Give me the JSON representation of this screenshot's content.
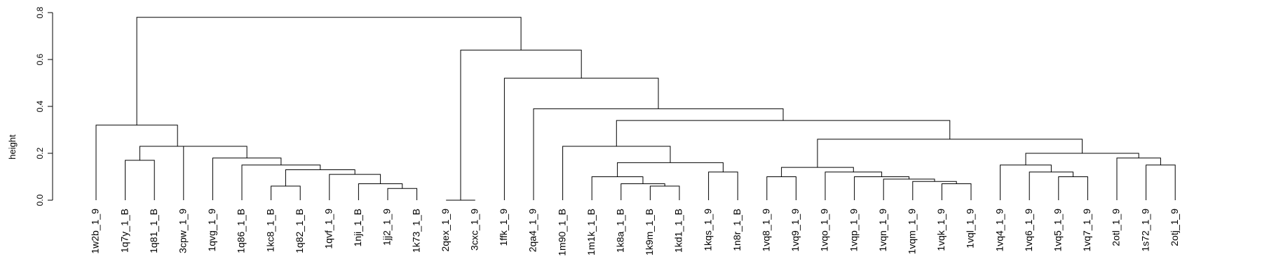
{
  "chart_data": {
    "type": "dendrogram",
    "title": "",
    "xlabel": "",
    "ylabel": "height",
    "ylim": [
      0,
      0.8
    ],
    "yticks": [
      "0.0",
      "0.2",
      "0.4",
      "0.6",
      "0.8"
    ],
    "yticks_values": [
      0,
      0.2,
      0.4,
      0.6,
      0.8
    ],
    "leaves": [
      "1w2b_1_9",
      "1q7y_1_B",
      "1q81_1_B",
      "3cpw_1_9",
      "1qvg_1_9",
      "1q86_1_B",
      "1kc8_1_B",
      "1q82_1_B",
      "1qvf_1_9",
      "1nji_1_B",
      "1jj2_1_9",
      "1k73_1_B",
      "2qex_1_9",
      "3cxc_1_9",
      "1ffk_1_9",
      "2qa4_1_9",
      "1m90_1_B",
      "1m1k_1_B",
      "1k8a_1_B",
      "1k9m_1_B",
      "1kd1_1_B",
      "1kqs_1_9",
      "1n8r_1_B",
      "1vq8_1_9",
      "1vq9_1_9",
      "1vqo_1_9",
      "1vqp_1_9",
      "1vqn_1_9",
      "1vqm_1_9",
      "1vqk_1_9",
      "1vql_1_9",
      "1vq4_1_9",
      "1vq6_1_9",
      "1vq5_1_9",
      "1vq7_1_9",
      "2otl_1_9",
      "1s72_1_9",
      "2otj_1_9"
    ],
    "merges": [
      {
        "left": "L1",
        "right": "L2",
        "height": 0.17
      },
      {
        "left": "L6",
        "right": "L7",
        "height": 0.06
      },
      {
        "left": "L10",
        "right": "L11",
        "height": 0.05
      },
      {
        "left": "L9",
        "right": "M3",
        "height": 0.07
      },
      {
        "left": "L8",
        "right": "M4",
        "height": 0.11
      },
      {
        "left": "M2",
        "right": "M5",
        "height": 0.13
      },
      {
        "left": "L5",
        "right": "M6",
        "height": 0.15
      },
      {
        "left": "L4",
        "right": "M7",
        "height": 0.18
      },
      {
        "left": "L3",
        "right": "M8",
        "height": 0.23
      },
      {
        "left": "M1",
        "right": "M9",
        "height": 0.23
      },
      {
        "left": "L0",
        "right": "M10",
        "height": 0.32
      },
      {
        "left": "L12",
        "right": "L13",
        "height": 0.0
      },
      {
        "left": "L19",
        "right": "L20",
        "height": 0.06
      },
      {
        "left": "L18",
        "right": "M13",
        "height": 0.07
      },
      {
        "left": "L17",
        "right": "M14",
        "height": 0.1
      },
      {
        "left": "L21",
        "right": "L22",
        "height": 0.12
      },
      {
        "left": "M15",
        "right": "M16",
        "height": 0.16
      },
      {
        "left": "L16",
        "right": "M17",
        "height": 0.23
      },
      {
        "left": "L23",
        "right": "L24",
        "height": 0.1
      },
      {
        "left": "L29",
        "right": "L30",
        "height": 0.07
      },
      {
        "left": "L28",
        "right": "M20",
        "height": 0.08
      },
      {
        "left": "L27",
        "right": "M21",
        "height": 0.09
      },
      {
        "left": "L26",
        "right": "M22",
        "height": 0.1
      },
      {
        "left": "L25",
        "right": "M23",
        "height": 0.12
      },
      {
        "left": "M19",
        "right": "M24",
        "height": 0.14
      },
      {
        "left": "L33",
        "right": "L34",
        "height": 0.1
      },
      {
        "left": "L32",
        "right": "M26",
        "height": 0.12
      },
      {
        "left": "L31",
        "right": "M27",
        "height": 0.15
      },
      {
        "left": "L36",
        "right": "L37",
        "height": 0.15
      },
      {
        "left": "L35",
        "right": "M29",
        "height": 0.18
      },
      {
        "left": "M28",
        "right": "M30",
        "height": 0.2
      },
      {
        "left": "M25",
        "right": "M31",
        "height": 0.26
      },
      {
        "left": "M18",
        "right": "M32",
        "height": 0.34
      },
      {
        "left": "L15",
        "right": "M33",
        "height": 0.39
      },
      {
        "left": "L14",
        "right": "M34",
        "height": 0.52
      },
      {
        "left": "M12",
        "right": "M35",
        "height": 0.64
      },
      {
        "left": "M11",
        "right": "M36",
        "height": 0.78
      }
    ]
  }
}
